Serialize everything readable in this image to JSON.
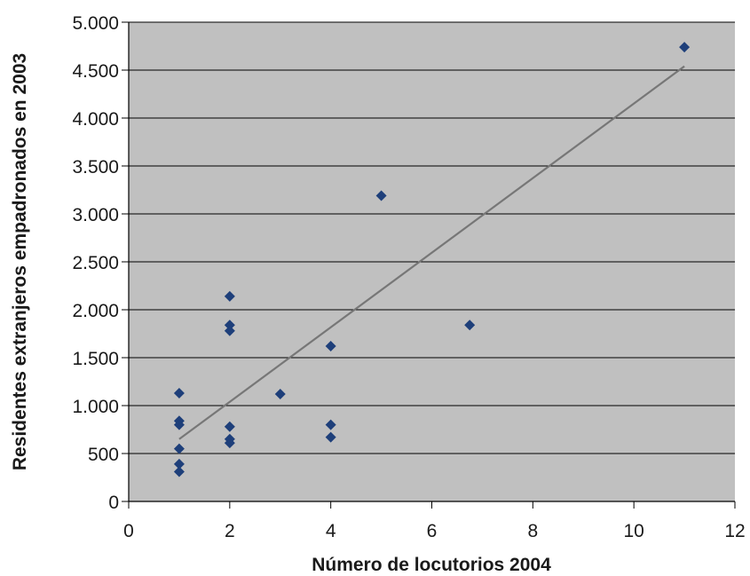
{
  "chart_data": {
    "type": "scatter",
    "title": "",
    "xlabel": "Número de locutorios 2004",
    "ylabel": "Residentes extranjeros empadronados en 2003",
    "xlim": [
      0,
      12
    ],
    "ylim": [
      0,
      5000
    ],
    "x_ticks": [
      0,
      2,
      4,
      6,
      8,
      10,
      12
    ],
    "x_tick_labels": [
      "0",
      "2",
      "4",
      "6",
      "8",
      "10",
      "12"
    ],
    "y_ticks": [
      0,
      500,
      1000,
      1500,
      2000,
      2500,
      3000,
      3500,
      4000,
      4500,
      5000
    ],
    "y_tick_labels": [
      "0",
      "500",
      "1.000",
      "1.500",
      "2.000",
      "2.500",
      "3.000",
      "3.500",
      "4.000",
      "4.500",
      "5.000"
    ],
    "grid": true,
    "legend": "none",
    "colors": {
      "plot_background": "#c0c0c0",
      "marker": "#1e3f7a",
      "trendline": "#777777",
      "gridline": "#000000"
    },
    "series": [
      {
        "marker": "diamond",
        "points": [
          {
            "x": 1,
            "y": 1130
          },
          {
            "x": 1,
            "y": 840
          },
          {
            "x": 1,
            "y": 800
          },
          {
            "x": 1,
            "y": 550
          },
          {
            "x": 1,
            "y": 390
          },
          {
            "x": 1,
            "y": 310
          },
          {
            "x": 2,
            "y": 2140
          },
          {
            "x": 2,
            "y": 1840
          },
          {
            "x": 2,
            "y": 1780
          },
          {
            "x": 2,
            "y": 780
          },
          {
            "x": 2,
            "y": 650
          },
          {
            "x": 2,
            "y": 610
          },
          {
            "x": 3,
            "y": 1120
          },
          {
            "x": 4,
            "y": 1620
          },
          {
            "x": 4,
            "y": 800
          },
          {
            "x": 4,
            "y": 670
          },
          {
            "x": 5,
            "y": 3190
          },
          {
            "x": 6.75,
            "y": 1840
          },
          {
            "x": 11,
            "y": 4740
          }
        ]
      }
    ],
    "trendline": {
      "type": "linear",
      "x_start": 1,
      "y_start": 650,
      "x_end": 11,
      "y_end": 4540
    }
  }
}
